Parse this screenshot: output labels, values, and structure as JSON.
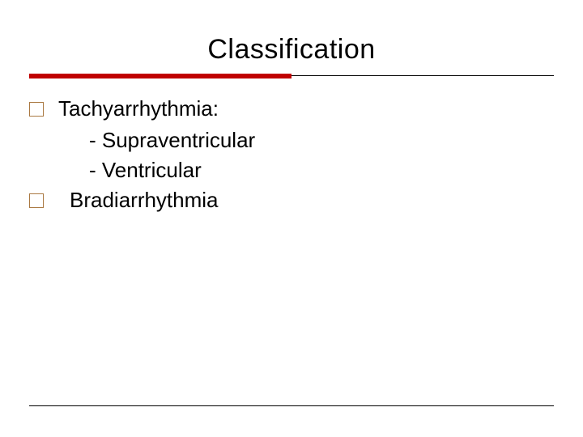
{
  "title": "Classification",
  "colors": {
    "accent_rule": "#c00000",
    "bullet_border": "#aa7942",
    "background": "#ffffff",
    "text": "#000000"
  },
  "fontsizes": {
    "title_pt": 34,
    "body_pt": 26
  },
  "items": [
    {
      "label": "Tachyarrhythmia:",
      "extra_indent": false,
      "subitems": [
        "- Supraventricular",
        "- Ventricular"
      ]
    },
    {
      "label": "Bradiarrhythmia",
      "extra_indent": true,
      "subitems": []
    }
  ]
}
